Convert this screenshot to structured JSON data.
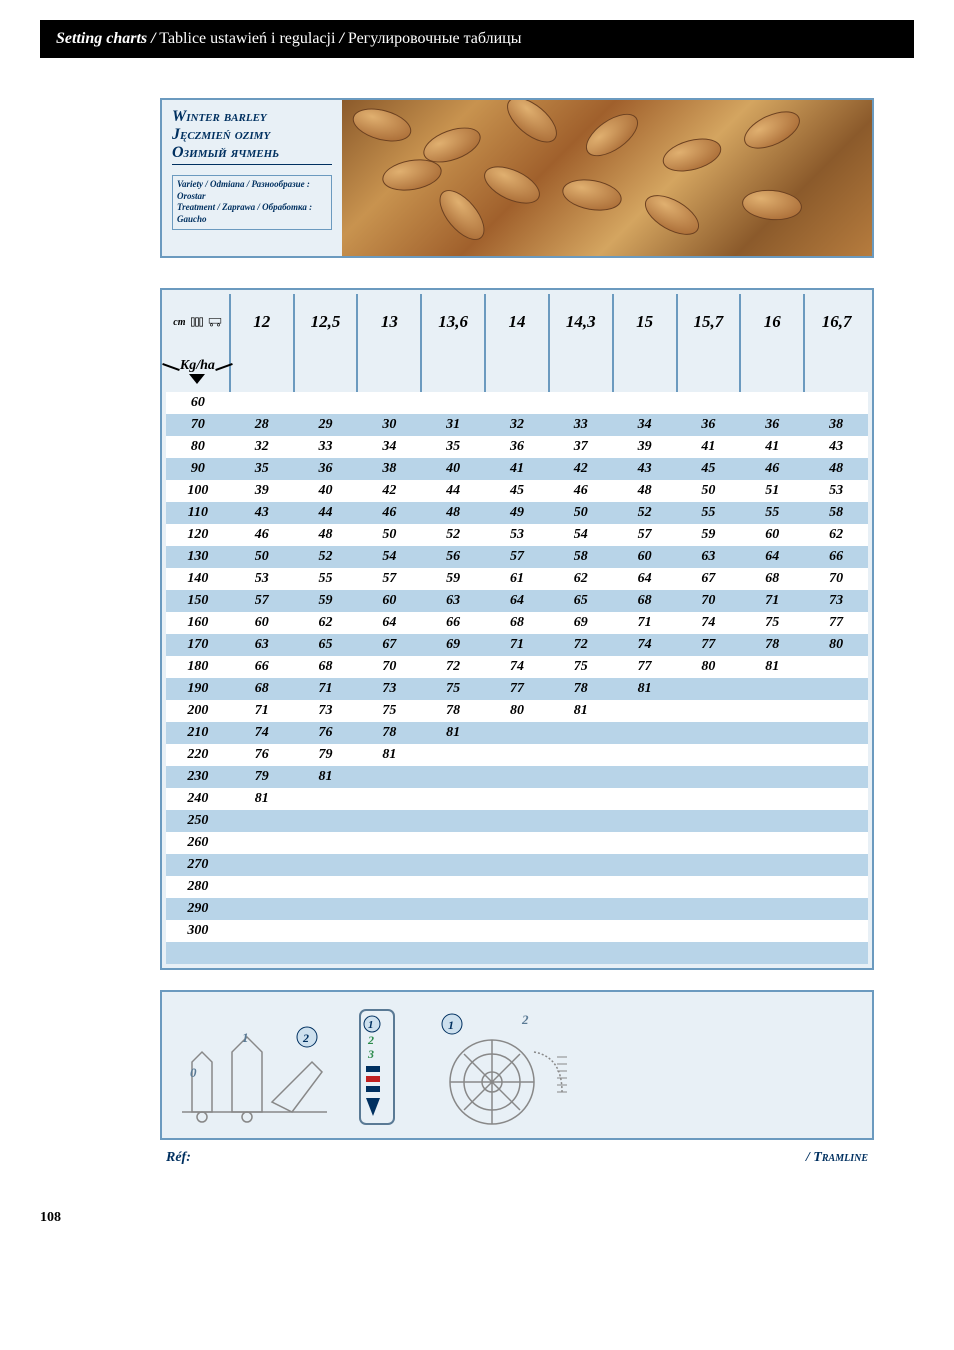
{
  "header": {
    "title_bold": "Setting charts /",
    "title_light1": " Tablice ustawień i regulacji ",
    "title_bold2": "/",
    "title_light2": " Регулировочные таблицы"
  },
  "crop": {
    "name_en": "Winter barley",
    "name_pl": "Jęczmień ozimy",
    "name_ru": "Озимый ячмень",
    "meta_variety_label": "Variety / Odmiana / Разнообразие :",
    "meta_variety": "Orostar",
    "meta_treatment_label": "Treatment / Zaprawa / Обработка :",
    "meta_treatment": "Gaucho"
  },
  "chart": {
    "corner_unit": "cm",
    "row_unit": "Kg/ha",
    "col_headers": [
      "12",
      "12,5",
      "13",
      "13,6",
      "14",
      "14,3",
      "15",
      "15,7",
      "16",
      "16,7"
    ],
    "rows": [
      {
        "label": "60",
        "cells": [
          "",
          "",
          "",
          "",
          "",
          "",
          "",
          "",
          "",
          ""
        ]
      },
      {
        "label": "70",
        "cells": [
          "28",
          "29",
          "30",
          "31",
          "32",
          "33",
          "34",
          "36",
          "36",
          "38"
        ]
      },
      {
        "label": "80",
        "cells": [
          "32",
          "33",
          "34",
          "35",
          "36",
          "37",
          "39",
          "41",
          "41",
          "43"
        ]
      },
      {
        "label": "90",
        "cells": [
          "35",
          "36",
          "38",
          "40",
          "41",
          "42",
          "43",
          "45",
          "46",
          "48"
        ]
      },
      {
        "label": "100",
        "cells": [
          "39",
          "40",
          "42",
          "44",
          "45",
          "46",
          "48",
          "50",
          "51",
          "53"
        ]
      },
      {
        "label": "110",
        "cells": [
          "43",
          "44",
          "46",
          "48",
          "49",
          "50",
          "52",
          "55",
          "55",
          "58"
        ]
      },
      {
        "label": "120",
        "cells": [
          "46",
          "48",
          "50",
          "52",
          "53",
          "54",
          "57",
          "59",
          "60",
          "62"
        ]
      },
      {
        "label": "130",
        "cells": [
          "50",
          "52",
          "54",
          "56",
          "57",
          "58",
          "60",
          "63",
          "64",
          "66"
        ]
      },
      {
        "label": "140",
        "cells": [
          "53",
          "55",
          "57",
          "59",
          "61",
          "62",
          "64",
          "67",
          "68",
          "70"
        ]
      },
      {
        "label": "150",
        "cells": [
          "57",
          "59",
          "60",
          "63",
          "64",
          "65",
          "68",
          "70",
          "71",
          "73"
        ]
      },
      {
        "label": "160",
        "cells": [
          "60",
          "62",
          "64",
          "66",
          "68",
          "69",
          "71",
          "74",
          "75",
          "77"
        ]
      },
      {
        "label": "170",
        "cells": [
          "63",
          "65",
          "67",
          "69",
          "71",
          "72",
          "74",
          "77",
          "78",
          "80"
        ]
      },
      {
        "label": "180",
        "cells": [
          "66",
          "68",
          "70",
          "72",
          "74",
          "75",
          "77",
          "80",
          "81",
          ""
        ]
      },
      {
        "label": "190",
        "cells": [
          "68",
          "71",
          "73",
          "75",
          "77",
          "78",
          "81",
          "",
          "",
          ""
        ]
      },
      {
        "label": "200",
        "cells": [
          "71",
          "73",
          "75",
          "78",
          "80",
          "81",
          "",
          "",
          "",
          ""
        ]
      },
      {
        "label": "210",
        "cells": [
          "74",
          "76",
          "78",
          "81",
          "",
          "",
          "",
          "",
          "",
          ""
        ]
      },
      {
        "label": "220",
        "cells": [
          "76",
          "79",
          "81",
          "",
          "",
          "",
          "",
          "",
          "",
          ""
        ]
      },
      {
        "label": "230",
        "cells": [
          "79",
          "81",
          "",
          "",
          "",
          "",
          "",
          "",
          "",
          ""
        ]
      },
      {
        "label": "240",
        "cells": [
          "81",
          "",
          "",
          "",
          "",
          "",
          "",
          "",
          "",
          ""
        ]
      },
      {
        "label": "250",
        "cells": [
          "",
          "",
          "",
          "",
          "",
          "",
          "",
          "",
          "",
          ""
        ]
      },
      {
        "label": "260",
        "cells": [
          "",
          "",
          "",
          "",
          "",
          "",
          "",
          "",
          "",
          ""
        ]
      },
      {
        "label": "270",
        "cells": [
          "",
          "",
          "",
          "",
          "",
          "",
          "",
          "",
          "",
          ""
        ]
      },
      {
        "label": "280",
        "cells": [
          "",
          "",
          "",
          "",
          "",
          "",
          "",
          "",
          "",
          ""
        ]
      },
      {
        "label": "290",
        "cells": [
          "",
          "",
          "",
          "",
          "",
          "",
          "",
          "",
          "",
          ""
        ]
      },
      {
        "label": "300",
        "cells": [
          "",
          "",
          "",
          "",
          "",
          "",
          "",
          "",
          "",
          ""
        ]
      }
    ],
    "stripe_color_a": "#ffffff",
    "stripe_color_b": "#b8d4e8",
    "border_color": "#6b9abf",
    "bg_color": "#e8f0f6"
  },
  "diagram": {
    "labels": {
      "one": "1",
      "two": "2",
      "three": "3",
      "zero": "0"
    }
  },
  "footer": {
    "ref_label": "Réf:",
    "right": "/  Tramline"
  },
  "page_number": "108"
}
